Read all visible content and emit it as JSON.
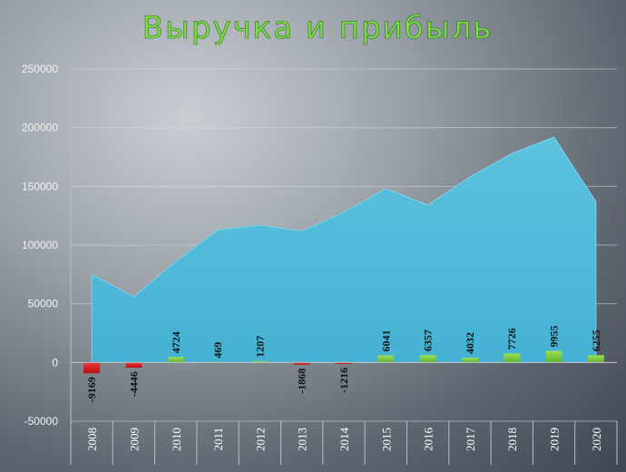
{
  "chart_data": {
    "type": "area",
    "title": "Выручка и прибыль",
    "categories": [
      "2008",
      "2009",
      "2010",
      "2011",
      "2012",
      "2013",
      "2014",
      "2015",
      "2016",
      "2017",
      "2018",
      "2019",
      "2020"
    ],
    "series": [
      {
        "kind": "area",
        "color": "#52bbd8",
        "values": [
          75000,
          56000,
          86000,
          113000,
          117000,
          112000,
          128000,
          148000,
          134000,
          158000,
          178000,
          192000,
          137000
        ]
      },
      {
        "kind": "bar",
        "positive_color": "#7ccf3f",
        "negative_color": "#e01e1e",
        "values": [
          -9169,
          -4446,
          4724,
          469,
          1207,
          -1868,
          -1216,
          6041,
          6357,
          4032,
          7726,
          9955,
          6255
        ]
      }
    ],
    "ylim": [
      -50000,
      250000
    ],
    "yticks": [
      -50000,
      0,
      50000,
      100000,
      150000,
      200000,
      250000
    ],
    "grid": true,
    "legend": "none"
  }
}
